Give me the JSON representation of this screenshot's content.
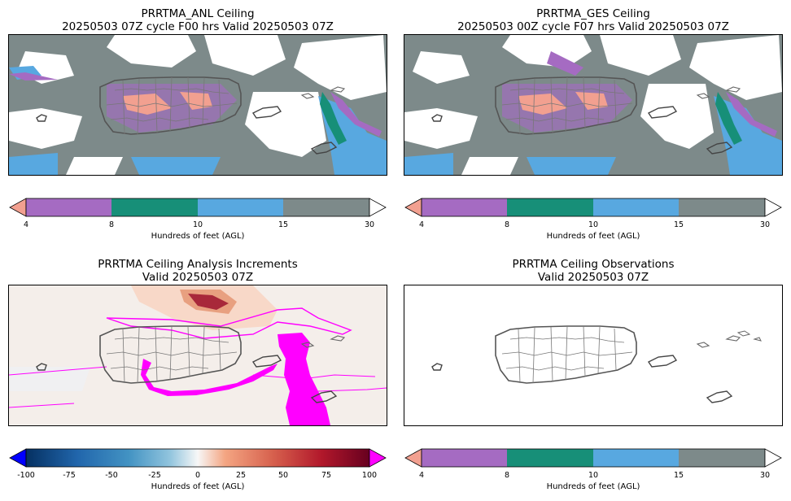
{
  "panels": [
    {
      "id": "anl",
      "title_line1": "PRRTMA_ANL Ceiling",
      "title_line2": "20250503 07Z cycle F00 hrs Valid 20250503 07Z"
    },
    {
      "id": "ges",
      "title_line1": "PRRTMA_GES Ceiling",
      "title_line2": "20250503 00Z cycle F07 hrs Valid 20250503 07Z"
    },
    {
      "id": "inc",
      "title_line1": "PRRTMA Ceiling Analysis Increments",
      "title_line2": "Valid 20250503 07Z"
    },
    {
      "id": "obs",
      "title_line1": "PRRTMA Ceiling Observations",
      "title_line2": "Valid 20250503 07Z"
    }
  ],
  "ceiling_colorbar": {
    "label": "Hundreds of feet (AGL)",
    "ticks": [
      "4",
      "8",
      "10",
      "15",
      "30"
    ],
    "colors": {
      "under": "#f2a090",
      "b4_8": "#a56bc2",
      "b8_10": "#178f78",
      "b10_15": "#58a8e0",
      "b15_30": "#7d8a8a",
      "over": "#ffffff"
    }
  },
  "increment_colorbar": {
    "label": "Hundreds of feet (AGL)",
    "ticks": [
      "-100",
      "-75",
      "-50",
      "-25",
      "0",
      "25",
      "50",
      "75",
      "100"
    ],
    "colors": {
      "under": "#0000ff",
      "over": "#ff00ff"
    }
  }
}
